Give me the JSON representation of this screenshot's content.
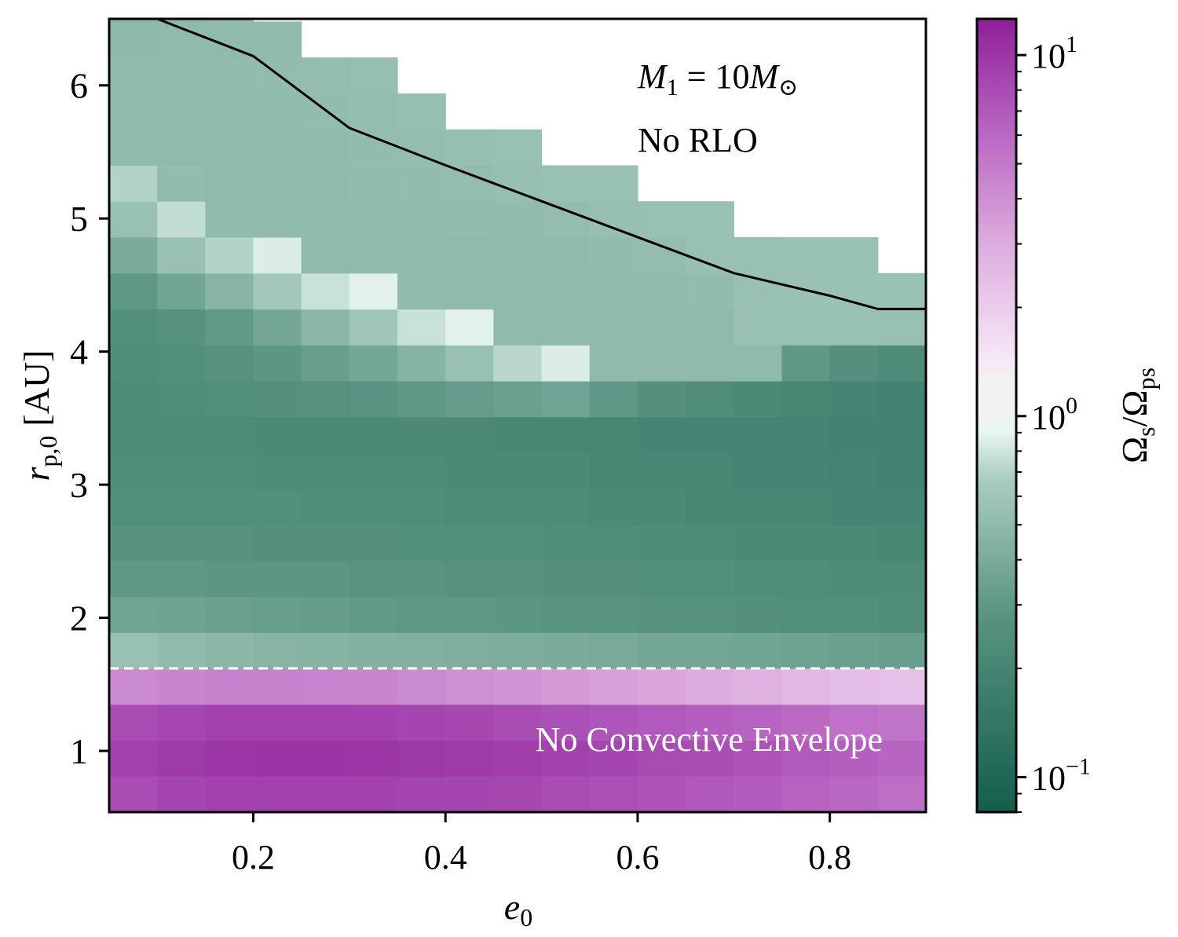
{
  "chart_data": {
    "type": "heatmap",
    "title": "",
    "xlabel": "e",
    "xlabel_sub": "0",
    "ylabel": "r",
    "ylabel_sub": "p,0",
    "ylabel_unit": "[AU]",
    "xlim": [
      0.05,
      0.9
    ],
    "ylim": [
      0.54,
      6.5
    ],
    "xticks": [
      0.2,
      0.4,
      0.6,
      0.8
    ],
    "xtick_labels": [
      "0.2",
      "0.4",
      "0.6",
      "0.8"
    ],
    "yticks": [
      1,
      2,
      3,
      4,
      5,
      6
    ],
    "ytick_labels": [
      "1",
      "2",
      "3",
      "4",
      "5",
      "6"
    ],
    "x_bin_edges": [
      0.05,
      0.1,
      0.15,
      0.2,
      0.25,
      0.3,
      0.35,
      0.4,
      0.45,
      0.5,
      0.55,
      0.6,
      0.65,
      0.7,
      0.75,
      0.8,
      0.85,
      0.9
    ],
    "y_bin_edges": [
      0.54,
      0.81,
      1.08,
      1.35,
      1.62,
      1.89,
      2.16,
      2.43,
      2.7,
      2.97,
      3.24,
      3.51,
      3.78,
      4.05,
      4.32,
      4.59,
      4.86,
      5.13,
      5.4,
      5.67,
      5.94,
      6.21,
      6.48,
      6.75
    ],
    "rlo_top_row": [
      22,
      22,
      22,
      21,
      20,
      20,
      19,
      18,
      18,
      17,
      17,
      16,
      16,
      15,
      15,
      15,
      14
    ],
    "convective_rows": [
      0,
      1,
      2,
      3
    ],
    "values": [
      [
        8.0,
        8.5,
        8.8,
        9.0,
        9.0,
        8.9,
        8.7,
        8.5,
        8.3,
        8.0,
        7.7,
        7.4,
        7.1,
        6.8,
        6.4,
        6.0,
        5.6
      ],
      [
        9.0,
        9.5,
        10.0,
        10.2,
        10.2,
        10.0,
        9.8,
        9.5,
        9.2,
        8.9,
        8.5,
        8.1,
        7.8,
        7.4,
        7.0,
        6.6,
        6.2
      ],
      [
        8.0,
        8.4,
        8.8,
        9.0,
        9.0,
        8.8,
        8.6,
        8.3,
        8.0,
        7.7,
        7.3,
        7.0,
        6.6,
        6.3,
        5.9,
        5.5,
        5.2
      ],
      [
        4.2,
        4.4,
        4.6,
        4.6,
        4.5,
        4.4,
        4.2,
        4.0,
        3.8,
        3.6,
        3.4,
        3.2,
        3.0,
        2.8,
        2.6,
        2.4,
        2.3
      ],
      [
        0.55,
        0.5,
        0.48,
        0.46,
        0.45,
        0.44,
        0.43,
        0.42,
        0.41,
        0.4,
        0.39,
        0.38,
        0.37,
        0.36,
        0.35,
        0.34,
        0.33
      ],
      [
        0.36,
        0.35,
        0.34,
        0.33,
        0.32,
        0.31,
        0.3,
        0.3,
        0.29,
        0.28,
        0.28,
        0.27,
        0.27,
        0.26,
        0.25,
        0.25,
        0.24
      ],
      [
        0.3,
        0.3,
        0.29,
        0.29,
        0.29,
        0.28,
        0.28,
        0.27,
        0.27,
        0.26,
        0.26,
        0.25,
        0.25,
        0.24,
        0.24,
        0.23,
        0.23
      ],
      [
        0.27,
        0.27,
        0.27,
        0.26,
        0.26,
        0.26,
        0.25,
        0.25,
        0.25,
        0.24,
        0.24,
        0.23,
        0.23,
        0.22,
        0.22,
        0.22,
        0.21
      ],
      [
        0.25,
        0.25,
        0.25,
        0.25,
        0.24,
        0.24,
        0.24,
        0.23,
        0.23,
        0.23,
        0.22,
        0.22,
        0.21,
        0.21,
        0.21,
        0.2,
        0.2
      ],
      [
        0.24,
        0.24,
        0.24,
        0.23,
        0.23,
        0.23,
        0.23,
        0.22,
        0.22,
        0.22,
        0.21,
        0.21,
        0.21,
        0.2,
        0.2,
        0.2,
        0.19
      ],
      [
        0.23,
        0.23,
        0.23,
        0.22,
        0.22,
        0.22,
        0.22,
        0.22,
        0.21,
        0.21,
        0.21,
        0.2,
        0.2,
        0.2,
        0.2,
        0.19,
        0.19
      ],
      [
        0.23,
        0.24,
        0.25,
        0.26,
        0.27,
        0.28,
        0.3,
        0.32,
        0.34,
        0.36,
        0.3,
        0.26,
        0.24,
        0.22,
        0.21,
        0.2,
        0.19
      ],
      [
        0.24,
        0.25,
        0.27,
        0.29,
        0.33,
        0.38,
        0.45,
        0.55,
        0.72,
        0.85,
        0.5,
        0.5,
        0.5,
        0.5,
        0.3,
        0.26,
        0.23
      ],
      [
        0.25,
        0.27,
        0.31,
        0.38,
        0.48,
        0.6,
        0.78,
        0.88,
        0.5,
        0.5,
        0.5,
        0.5,
        0.5,
        0.55,
        0.55,
        0.55,
        0.55
      ],
      [
        0.3,
        0.36,
        0.46,
        0.62,
        0.78,
        0.88,
        0.5,
        0.5,
        0.5,
        0.5,
        0.5,
        0.5,
        0.52,
        0.55,
        0.56,
        0.56,
        0.56
      ],
      [
        0.4,
        0.55,
        0.7,
        0.85,
        0.5,
        0.5,
        0.5,
        0.5,
        0.5,
        0.51,
        0.52,
        0.53,
        0.55,
        0.55,
        0.56,
        0.56,
        0.56
      ],
      [
        0.55,
        0.75,
        0.52,
        0.5,
        0.5,
        0.5,
        0.5,
        0.51,
        0.52,
        0.53,
        0.54,
        0.55,
        0.55,
        0.55,
        0.55,
        0.55,
        0.55
      ],
      [
        0.7,
        0.52,
        0.5,
        0.5,
        0.5,
        0.51,
        0.52,
        0.53,
        0.54,
        0.55,
        0.55,
        0.55,
        0.55,
        0.55,
        0.55,
        0.55,
        0.55
      ],
      [
        0.5,
        0.5,
        0.5,
        0.5,
        0.51,
        0.52,
        0.53,
        0.54,
        0.55,
        0.55,
        0.55,
        0.55,
        0.55,
        0.55,
        0.55,
        0.55,
        0.55
      ],
      [
        0.5,
        0.5,
        0.5,
        0.51,
        0.52,
        0.53,
        0.54,
        0.55,
        0.55,
        0.55,
        0.55,
        0.55,
        0.55,
        0.55,
        0.55,
        0.55,
        0.55
      ],
      [
        0.5,
        0.5,
        0.51,
        0.52,
        0.53,
        0.54,
        0.55,
        0.55,
        0.55,
        0.55,
        0.55,
        0.55,
        0.55,
        0.55,
        0.55,
        0.55,
        0.55
      ],
      [
        0.49,
        0.5,
        0.5,
        0.51,
        0.52,
        0.53,
        0.54,
        0.55,
        0.55,
        0.55,
        0.55,
        0.55,
        0.55,
        0.55,
        0.55,
        0.55,
        0.55
      ],
      [
        0.47,
        0.48,
        0.49,
        0.5,
        0.51,
        0.52,
        0.53,
        0.54,
        0.55,
        0.55,
        0.55,
        0.55,
        0.55,
        0.55,
        0.55,
        0.55,
        0.55
      ]
    ],
    "rlo_boundary": {
      "label": "",
      "x": [
        0.1,
        0.2,
        0.3,
        0.4,
        0.5,
        0.6,
        0.7,
        0.8,
        0.85,
        0.9
      ],
      "y": [
        6.5,
        6.22,
        5.68,
        5.4,
        5.13,
        4.86,
        4.59,
        4.42,
        4.32,
        4.32
      ]
    },
    "convective_boundary_y": 1.62,
    "annotations": {
      "mass": "M",
      "mass_sub": "1",
      "mass_eq": " = 10",
      "mass_unit": "M",
      "mass_unit_sub": "⊙",
      "rlo": "No RLO",
      "envelope": "No Convective Envelope"
    },
    "colorbar": {
      "label": "Ω",
      "label_sub1": "s",
      "label_mid": "/Ω",
      "label_sub2": "ps",
      "scale": "log",
      "range": [
        0.08,
        12.6
      ],
      "ticks": [
        0.1,
        1,
        10
      ],
      "tick_base": [
        "10",
        "10",
        "10"
      ],
      "tick_exp": [
        "−1",
        "0",
        "1"
      ],
      "colormap": "green-white-purple",
      "colors": {
        "low": "#135e4b",
        "mid_low": "#7fae9f",
        "near_one": "#eef8f4",
        "band": "#f2f2f2",
        "mid_high": "#dca6dd",
        "high": "#8e1f98"
      }
    }
  }
}
